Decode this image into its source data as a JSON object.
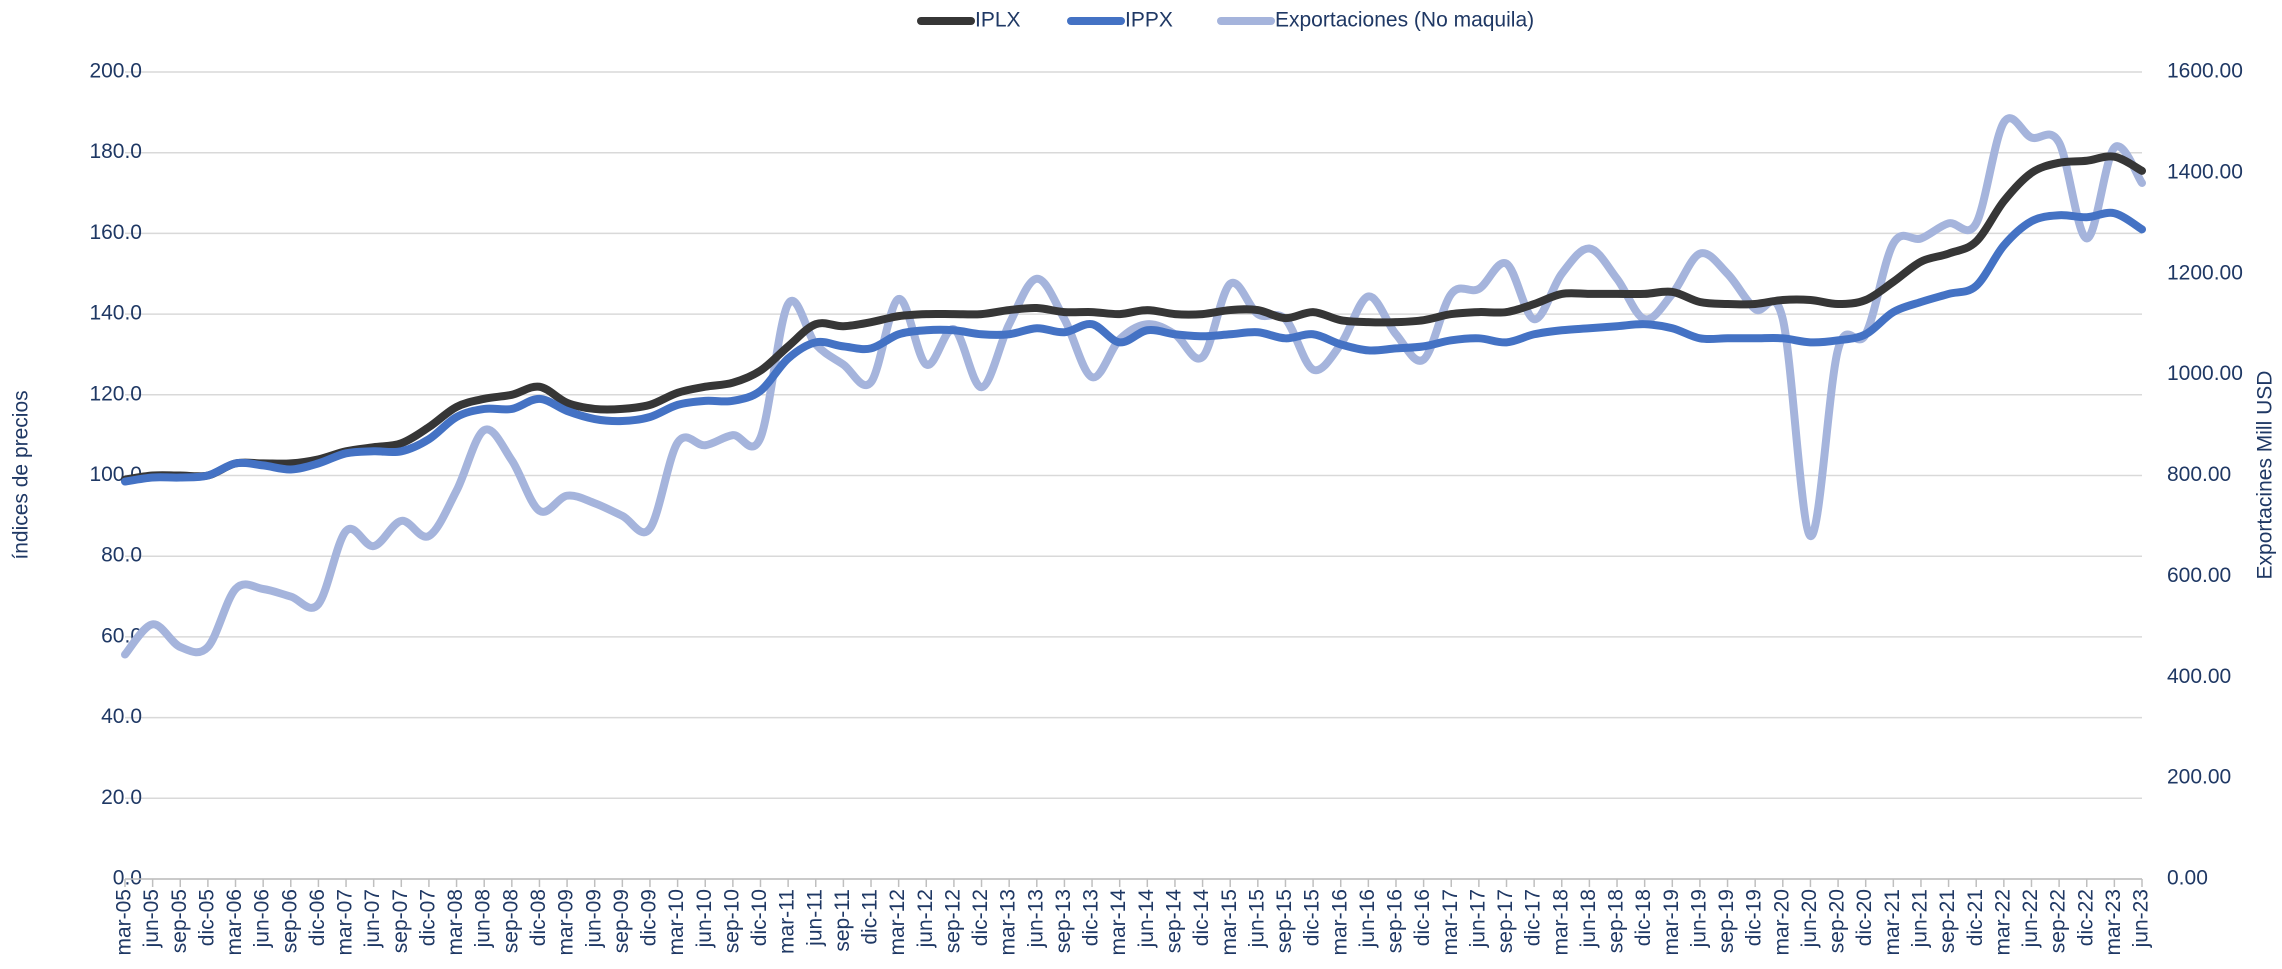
{
  "chart_data": {
    "type": "line",
    "ylabel": "índices de precios",
    "y2label": "Exportacines Mill USD",
    "categories": [
      "mar-05",
      "jun-05",
      "sep-05",
      "dic-05",
      "mar-06",
      "jun-06",
      "sep-06",
      "dic-06",
      "mar-07",
      "jun-07",
      "sep-07",
      "dic-07",
      "mar-08",
      "jun-08",
      "sep-08",
      "dic-08",
      "mar-09",
      "jun-09",
      "sep-09",
      "dic-09",
      "mar-10",
      "jun-10",
      "sep-10",
      "dic-10",
      "mar-11",
      "jun-11",
      "sep-11",
      "dic-11",
      "mar-12",
      "jun-12",
      "sep-12",
      "dic-12",
      "mar-13",
      "jun-13",
      "sep-13",
      "dic-13",
      "mar-14",
      "jun-14",
      "sep-14",
      "dic-14",
      "mar-15",
      "jun-15",
      "sep-15",
      "dic-15",
      "mar-16",
      "jun-16",
      "sep-16",
      "dic-16",
      "mar-17",
      "jun-17",
      "sep-17",
      "dic-17",
      "mar-18",
      "jun-18",
      "sep-18",
      "dic-18",
      "mar-19",
      "jun-19",
      "sep-19",
      "dic-19",
      "mar-20",
      "jun-20",
      "sep-20",
      "dic-20",
      "mar-21",
      "jun-21",
      "sep-21",
      "dic-21",
      "mar-22",
      "jun-22",
      "sep-22",
      "dic-22",
      "mar-23",
      "jun-23"
    ],
    "series": [
      {
        "name": "IPLX",
        "color": "#363636",
        "values": [
          99,
          100,
          100,
          100,
          103,
          103,
          103,
          104,
          106,
          107,
          108,
          112,
          117,
          119,
          120,
          122,
          118,
          116.5,
          116.5,
          117.5,
          120.5,
          122,
          123,
          126,
          132,
          137.5,
          137,
          138,
          139.5,
          140,
          140,
          140,
          141,
          141.5,
          140.5,
          140.5,
          140,
          141,
          140,
          140,
          141,
          141,
          139,
          140.5,
          138.5,
          138,
          138,
          138.5,
          140,
          140.5,
          140.5,
          142.5,
          145,
          145,
          145,
          145,
          145.5,
          143,
          142.5,
          142.5,
          143.5,
          143.5,
          142.5,
          143.5,
          148,
          153,
          155,
          158,
          168,
          175,
          177.5,
          178,
          179,
          175.5
        ]
      },
      {
        "name": "IPPX",
        "color": "#4472c4",
        "values": [
          98.5,
          99.5,
          99.5,
          100,
          103,
          102.5,
          101.5,
          103,
          105.5,
          106,
          106,
          109,
          114.5,
          116.5,
          116.5,
          119,
          116,
          114,
          113.5,
          114.5,
          117.5,
          118.5,
          118.5,
          121,
          129,
          133,
          132,
          131.5,
          135,
          136,
          136,
          135,
          135,
          136.5,
          135.5,
          137.5,
          133,
          136,
          135,
          134.5,
          135,
          135.5,
          134,
          135,
          132.5,
          131,
          131.5,
          132,
          133.5,
          134,
          133,
          135,
          136,
          136.5,
          137,
          137.5,
          136.5,
          134,
          134,
          134,
          134,
          133,
          133.5,
          135,
          140.5,
          143,
          145,
          147,
          157,
          163,
          164.5,
          164,
          165,
          161
        ]
      },
      {
        "name": "Exportaciones (No maquila)",
        "color": "#a5b4dc",
        "axis": "y2",
        "values": [
          445,
          505,
          460,
          460,
          575,
          575,
          560,
          545,
          690,
          660,
          710,
          680,
          770,
          890,
          830,
          730,
          760,
          745,
          720,
          695,
          865,
          860,
          880,
          875,
          1140,
          1060,
          1020,
          985,
          1150,
          1020,
          1090,
          975,
          1100,
          1190,
          1110,
          995,
          1070,
          1100,
          1080,
          1035,
          1180,
          1120,
          1110,
          1010,
          1060,
          1155,
          1080,
          1030,
          1160,
          1170,
          1220,
          1110,
          1200,
          1250,
          1190,
          1110,
          1160,
          1240,
          1200,
          1130,
          1110,
          680,
          1050,
          1080,
          1260,
          1270,
          1300,
          1300,
          1500,
          1470,
          1460,
          1270,
          1450,
          1380
        ]
      }
    ],
    "ylim": [
      0,
      200
    ],
    "yticks": [
      {
        "value": 0,
        "label": "0.0"
      },
      {
        "value": 20,
        "label": "20.0"
      },
      {
        "value": 40,
        "label": "40.0"
      },
      {
        "value": 60,
        "label": "60.0"
      },
      {
        "value": 80,
        "label": "80.0"
      },
      {
        "value": 100,
        "label": "100.0"
      },
      {
        "value": 120,
        "label": "120.0"
      },
      {
        "value": 140,
        "label": "140.0"
      },
      {
        "value": 160,
        "label": "160.0"
      },
      {
        "value": 180,
        "label": "180.0"
      },
      {
        "value": 200,
        "label": "200.0"
      }
    ],
    "y2lim": [
      0,
      1600
    ],
    "y2ticks": [
      {
        "value": 0,
        "label": "0.00"
      },
      {
        "value": 200,
        "label": "200.00"
      },
      {
        "value": 400,
        "label": "400.00"
      },
      {
        "value": 600,
        "label": "600.00"
      },
      {
        "value": 800,
        "label": "800.00"
      },
      {
        "value": 1000,
        "label": "1000.00"
      },
      {
        "value": 1200,
        "label": "1200.00"
      },
      {
        "value": 1400,
        "label": "1400.00"
      },
      {
        "value": 1600,
        "label": "1600.00"
      }
    ],
    "grid": true,
    "legend": "top"
  }
}
